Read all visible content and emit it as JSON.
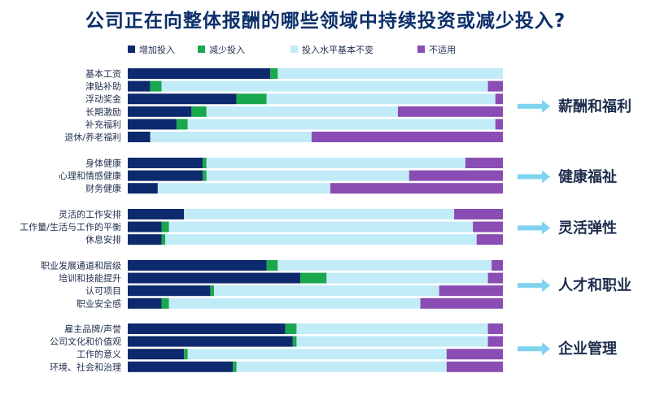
{
  "title": "公司正在向整体报酬的哪些领域中持续投资或减少投入?",
  "chart_data": {
    "type": "bar",
    "orientation": "horizontal",
    "stacked": "100%",
    "legend_position": "top",
    "grid": false,
    "series": [
      {
        "name": "增加投入",
        "color": "#0e2a6e"
      },
      {
        "name": "减少投入",
        "color": "#1aa84f"
      },
      {
        "name": "投入水平基本不变",
        "color": "#c2ebf8"
      },
      {
        "name": "不适用",
        "color": "#8a4db3"
      }
    ],
    "groups": [
      {
        "label": "薪酬和福利",
        "rows": [
          {
            "category": "基本工资",
            "values": [
              38,
              2,
              60,
              0
            ]
          },
          {
            "category": "津贴补助",
            "values": [
              6,
              3,
              87,
              4
            ]
          },
          {
            "category": "浮动奖金",
            "values": [
              29,
              8,
              61,
              2
            ]
          },
          {
            "category": "长期激励",
            "values": [
              17,
              4,
              51,
              28
            ]
          },
          {
            "category": "补充福利",
            "values": [
              13,
              3,
              82,
              2
            ]
          },
          {
            "category": "退休/养老福利",
            "values": [
              6,
              0,
              43,
              51
            ]
          }
        ]
      },
      {
        "label": "健康福祉",
        "rows": [
          {
            "category": "身体健康",
            "values": [
              20,
              1,
              69,
              10
            ]
          },
          {
            "category": "心理和情感健康",
            "values": [
              20,
              1,
              54,
              25
            ]
          },
          {
            "category": "财务健康",
            "values": [
              8,
              0,
              46,
              46
            ]
          }
        ]
      },
      {
        "label": "灵活弹性",
        "rows": [
          {
            "category": "灵活的工作安排",
            "values": [
              15,
              0,
              72,
              13
            ]
          },
          {
            "category": "工作量/生活与工作的平衡",
            "values": [
              9,
              2,
              81,
              8
            ]
          },
          {
            "category": "休息安排",
            "values": [
              9,
              1,
              83,
              7
            ]
          }
        ]
      },
      {
        "label": "人才和职业",
        "rows": [
          {
            "category": "职业发展通道和层级",
            "values": [
              37,
              3,
              57,
              3
            ]
          },
          {
            "category": "培训和技能提升",
            "values": [
              46,
              7,
              43,
              4
            ]
          },
          {
            "category": "认可项目",
            "values": [
              22,
              1,
              60,
              17
            ]
          },
          {
            "category": "职业安全感",
            "values": [
              9,
              2,
              67,
              22
            ]
          }
        ]
      },
      {
        "label": "企业管理",
        "rows": [
          {
            "category": "雇主品牌/声誉",
            "values": [
              42,
              3,
              51,
              4
            ]
          },
          {
            "category": "公司文化和价值观",
            "values": [
              44,
              1,
              51,
              4
            ]
          },
          {
            "category": "工作的意义",
            "values": [
              15,
              1,
              69,
              15
            ]
          },
          {
            "category": "环境、社会和治理",
            "values": [
              28,
              1,
              56,
              15
            ]
          }
        ]
      }
    ]
  }
}
